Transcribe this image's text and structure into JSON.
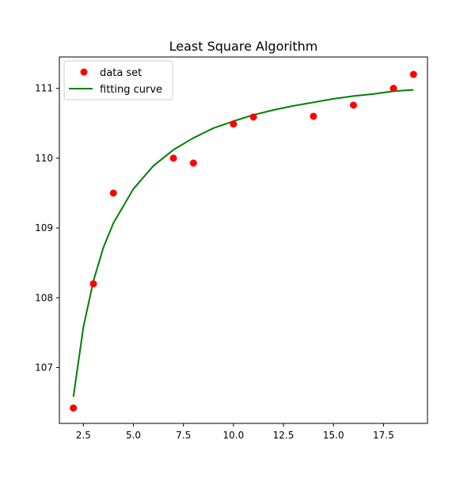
{
  "chart_data": {
    "type": "scatter",
    "title": "Least Square Algorithm",
    "xlabel": "",
    "ylabel": "",
    "xlim": [
      1.3,
      19.7
    ],
    "ylim": [
      106.2,
      111.45
    ],
    "x_ticks": [
      2.5,
      5.0,
      7.5,
      10.0,
      12.5,
      15.0,
      17.5
    ],
    "x_tick_labels": [
      "2.5",
      "5.0",
      "7.5",
      "10.0",
      "12.5",
      "15.0",
      "17.5"
    ],
    "y_ticks": [
      107,
      108,
      109,
      110,
      111
    ],
    "y_tick_labels": [
      "107",
      "108",
      "109",
      "110",
      "111"
    ],
    "grid": false,
    "legend_position": "top-left",
    "series": [
      {
        "name": "data set",
        "kind": "points",
        "color": "#ff0000",
        "x": [
          2,
          3,
          4,
          7,
          8,
          10,
          11,
          14,
          16,
          18,
          19
        ],
        "y": [
          106.42,
          108.2,
          109.5,
          110.0,
          109.93,
          110.49,
          110.59,
          110.6,
          110.76,
          111.0,
          111.2
        ]
      },
      {
        "name": "fitting curve",
        "kind": "line",
        "color": "#008000",
        "x": [
          2,
          2.5,
          3,
          3.5,
          4,
          5,
          6,
          7,
          8,
          9,
          10,
          11,
          12,
          13,
          14,
          15,
          16,
          17,
          18,
          19
        ],
        "y": [
          106.58,
          107.58,
          108.24,
          108.72,
          109.07,
          109.56,
          109.89,
          110.12,
          110.29,
          110.43,
          110.53,
          110.62,
          110.69,
          110.75,
          110.8,
          110.85,
          110.89,
          110.92,
          110.96,
          110.98
        ]
      }
    ]
  }
}
